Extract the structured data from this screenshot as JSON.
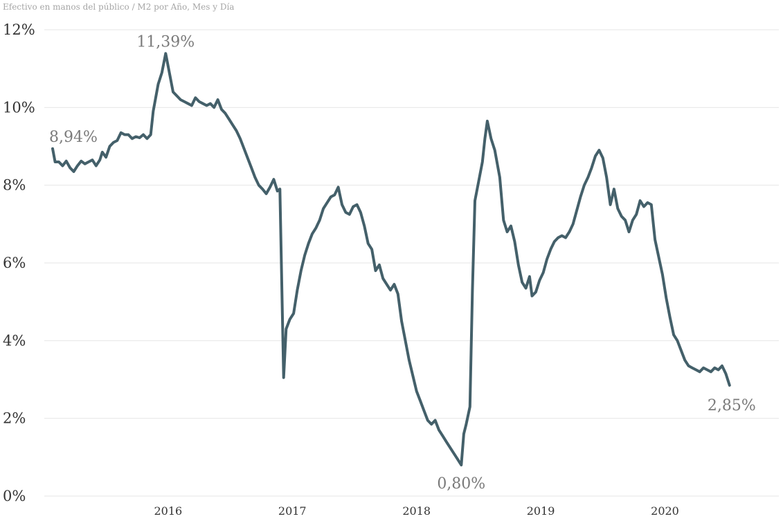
{
  "chart_data": {
    "type": "line",
    "title": "Efectivo en manos del público / M2 por Año, Mes y Día",
    "xlabel": "",
    "ylabel": "",
    "y_unit": "%",
    "ylim": [
      0,
      12
    ],
    "xlim": [
      2015.07,
      2020.85
    ],
    "yticks": [
      {
        "value": 0,
        "label": "0%"
      },
      {
        "value": 2,
        "label": "2%"
      },
      {
        "value": 4,
        "label": "4%"
      },
      {
        "value": 6,
        "label": "6%"
      },
      {
        "value": 8,
        "label": "8%"
      },
      {
        "value": 10,
        "label": "10%"
      },
      {
        "value": 12,
        "label": "12%"
      }
    ],
    "xticks": [
      {
        "value": 2016.0,
        "label": "2016"
      },
      {
        "value": 2017.0,
        "label": "2017"
      },
      {
        "value": 2018.0,
        "label": "2018"
      },
      {
        "value": 2019.0,
        "label": "2019"
      },
      {
        "value": 2020.0,
        "label": "2020"
      }
    ],
    "grid": true,
    "legend": "none",
    "color": "#44606a",
    "series": [
      {
        "points": [
          [
            2015.07,
            8.94
          ],
          [
            2015.09,
            8.6
          ],
          [
            2015.12,
            8.6
          ],
          [
            2015.15,
            8.5
          ],
          [
            2015.18,
            8.62
          ],
          [
            2015.21,
            8.45
          ],
          [
            2015.24,
            8.35
          ],
          [
            2015.27,
            8.5
          ],
          [
            2015.3,
            8.62
          ],
          [
            2015.33,
            8.55
          ],
          [
            2015.36,
            8.6
          ],
          [
            2015.39,
            8.65
          ],
          [
            2015.42,
            8.5
          ],
          [
            2015.45,
            8.65
          ],
          [
            2015.47,
            8.85
          ],
          [
            2015.5,
            8.72
          ],
          [
            2015.53,
            9.0
          ],
          [
            2015.56,
            9.1
          ],
          [
            2015.59,
            9.15
          ],
          [
            2015.62,
            9.35
          ],
          [
            2015.65,
            9.3
          ],
          [
            2015.68,
            9.3
          ],
          [
            2015.71,
            9.2
          ],
          [
            2015.74,
            9.25
          ],
          [
            2015.77,
            9.22
          ],
          [
            2015.8,
            9.3
          ],
          [
            2015.83,
            9.2
          ],
          [
            2015.86,
            9.3
          ],
          [
            2015.88,
            9.9
          ],
          [
            2015.92,
            10.6
          ],
          [
            2015.95,
            10.9
          ],
          [
            2015.98,
            11.39
          ],
          [
            2016.01,
            10.9
          ],
          [
            2016.04,
            10.4
          ],
          [
            2016.07,
            10.3
          ],
          [
            2016.1,
            10.2
          ],
          [
            2016.13,
            10.15
          ],
          [
            2016.16,
            10.1
          ],
          [
            2016.19,
            10.05
          ],
          [
            2016.22,
            10.25
          ],
          [
            2016.25,
            10.15
          ],
          [
            2016.28,
            10.1
          ],
          [
            2016.31,
            10.05
          ],
          [
            2016.34,
            10.1
          ],
          [
            2016.37,
            10.0
          ],
          [
            2016.4,
            10.2
          ],
          [
            2016.43,
            9.95
          ],
          [
            2016.46,
            9.85
          ],
          [
            2016.49,
            9.7
          ],
          [
            2016.52,
            9.55
          ],
          [
            2016.55,
            9.4
          ],
          [
            2016.58,
            9.2
          ],
          [
            2016.61,
            8.95
          ],
          [
            2016.64,
            8.7
          ],
          [
            2016.67,
            8.45
          ],
          [
            2016.7,
            8.2
          ],
          [
            2016.73,
            8.0
          ],
          [
            2016.76,
            7.9
          ],
          [
            2016.79,
            7.78
          ],
          [
            2016.82,
            7.95
          ],
          [
            2016.85,
            8.15
          ],
          [
            2016.88,
            7.85
          ],
          [
            2016.9,
            7.9
          ],
          [
            2016.93,
            3.05
          ],
          [
            2016.95,
            4.3
          ],
          [
            2016.98,
            4.55
          ],
          [
            2017.01,
            4.7
          ],
          [
            2017.04,
            5.3
          ],
          [
            2017.07,
            5.8
          ],
          [
            2017.1,
            6.2
          ],
          [
            2017.13,
            6.5
          ],
          [
            2017.16,
            6.75
          ],
          [
            2017.19,
            6.9
          ],
          [
            2017.22,
            7.1
          ],
          [
            2017.25,
            7.4
          ],
          [
            2017.28,
            7.55
          ],
          [
            2017.31,
            7.7
          ],
          [
            2017.34,
            7.75
          ],
          [
            2017.37,
            7.95
          ],
          [
            2017.4,
            7.5
          ],
          [
            2017.43,
            7.3
          ],
          [
            2017.46,
            7.25
          ],
          [
            2017.49,
            7.45
          ],
          [
            2017.52,
            7.5
          ],
          [
            2017.55,
            7.3
          ],
          [
            2017.58,
            6.95
          ],
          [
            2017.61,
            6.5
          ],
          [
            2017.64,
            6.35
          ],
          [
            2017.67,
            5.8
          ],
          [
            2017.7,
            5.95
          ],
          [
            2017.73,
            5.6
          ],
          [
            2017.76,
            5.45
          ],
          [
            2017.79,
            5.3
          ],
          [
            2017.82,
            5.45
          ],
          [
            2017.85,
            5.2
          ],
          [
            2017.88,
            4.5
          ],
          [
            2017.91,
            4.0
          ],
          [
            2017.94,
            3.5
          ],
          [
            2017.97,
            3.1
          ],
          [
            2018.0,
            2.7
          ],
          [
            2018.03,
            2.45
          ],
          [
            2018.06,
            2.2
          ],
          [
            2018.09,
            1.95
          ],
          [
            2018.12,
            1.85
          ],
          [
            2018.15,
            1.95
          ],
          [
            2018.18,
            1.7
          ],
          [
            2018.21,
            1.55
          ],
          [
            2018.24,
            1.4
          ],
          [
            2018.27,
            1.25
          ],
          [
            2018.3,
            1.1
          ],
          [
            2018.33,
            0.95
          ],
          [
            2018.36,
            0.8
          ],
          [
            2018.38,
            1.6
          ],
          [
            2018.4,
            1.85
          ],
          [
            2018.43,
            2.3
          ],
          [
            2018.45,
            5.3
          ],
          [
            2018.47,
            7.6
          ],
          [
            2018.5,
            8.1
          ],
          [
            2018.53,
            8.6
          ],
          [
            2018.55,
            9.2
          ],
          [
            2018.57,
            9.65
          ],
          [
            2018.6,
            9.2
          ],
          [
            2018.63,
            8.9
          ],
          [
            2018.67,
            8.2
          ],
          [
            2018.7,
            7.1
          ],
          [
            2018.73,
            6.8
          ],
          [
            2018.76,
            6.95
          ],
          [
            2018.79,
            6.55
          ],
          [
            2018.82,
            5.95
          ],
          [
            2018.85,
            5.5
          ],
          [
            2018.88,
            5.35
          ],
          [
            2018.91,
            5.65
          ],
          [
            2018.93,
            5.15
          ],
          [
            2018.96,
            5.25
          ],
          [
            2018.99,
            5.55
          ],
          [
            2019.02,
            5.75
          ],
          [
            2019.05,
            6.1
          ],
          [
            2019.08,
            6.35
          ],
          [
            2019.11,
            6.55
          ],
          [
            2019.14,
            6.65
          ],
          [
            2019.17,
            6.7
          ],
          [
            2019.2,
            6.65
          ],
          [
            2019.23,
            6.8
          ],
          [
            2019.26,
            7.0
          ],
          [
            2019.29,
            7.35
          ],
          [
            2019.32,
            7.7
          ],
          [
            2019.35,
            8.0
          ],
          [
            2019.38,
            8.2
          ],
          [
            2019.41,
            8.45
          ],
          [
            2019.44,
            8.75
          ],
          [
            2019.47,
            8.9
          ],
          [
            2019.5,
            8.7
          ],
          [
            2019.53,
            8.2
          ],
          [
            2019.56,
            7.5
          ],
          [
            2019.59,
            7.9
          ],
          [
            2019.62,
            7.4
          ],
          [
            2019.65,
            7.2
          ],
          [
            2019.68,
            7.1
          ],
          [
            2019.71,
            6.8
          ],
          [
            2019.74,
            7.1
          ],
          [
            2019.77,
            7.25
          ],
          [
            2019.8,
            7.6
          ],
          [
            2019.83,
            7.45
          ],
          [
            2019.86,
            7.55
          ],
          [
            2019.89,
            7.5
          ],
          [
            2019.92,
            6.6
          ],
          [
            2019.95,
            6.15
          ],
          [
            2019.98,
            5.7
          ],
          [
            2020.01,
            5.1
          ],
          [
            2020.04,
            4.6
          ],
          [
            2020.07,
            4.15
          ],
          [
            2020.1,
            4.0
          ],
          [
            2020.13,
            3.75
          ],
          [
            2020.16,
            3.5
          ],
          [
            2020.19,
            3.35
          ],
          [
            2020.22,
            3.3
          ],
          [
            2020.25,
            3.25
          ],
          [
            2020.28,
            3.2
          ],
          [
            2020.31,
            3.3
          ],
          [
            2020.34,
            3.25
          ],
          [
            2020.37,
            3.2
          ],
          [
            2020.4,
            3.3
          ],
          [
            2020.43,
            3.25
          ],
          [
            2020.46,
            3.35
          ],
          [
            2020.49,
            3.15
          ],
          [
            2020.52,
            2.85
          ]
        ]
      }
    ],
    "annotations": [
      {
        "x": 2015.07,
        "y": 8.94,
        "label": "8,94%"
      },
      {
        "x": 2015.98,
        "y": 11.39,
        "label": "11,39%"
      },
      {
        "x": 2018.36,
        "y": 0.8,
        "label": "0,80%"
      },
      {
        "x": 2020.52,
        "y": 2.85,
        "label": "2,85%"
      }
    ]
  }
}
